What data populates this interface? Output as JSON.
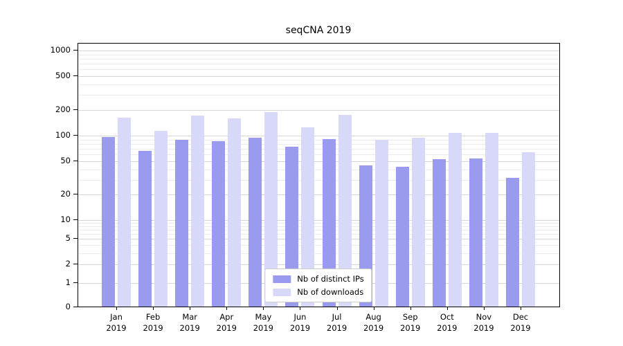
{
  "chart_data": {
    "type": "bar",
    "title": "seqCNA 2019",
    "scale": "log",
    "grid": true,
    "legend_position": "lower center",
    "categories": [
      "Jan 2019",
      "Feb 2019",
      "Mar 2019",
      "Apr 2019",
      "May 2019",
      "Jun 2019",
      "Jul 2019",
      "Aug 2019",
      "Sep 2019",
      "Oct 2019",
      "Nov 2019",
      "Dec 2019"
    ],
    "series": [
      {
        "name": "Nb of distinct IPs",
        "color": "#9a9aef",
        "values": [
          95,
          65,
          88,
          85,
          92,
          72,
          90,
          44,
          42,
          52,
          53,
          31
        ]
      },
      {
        "name": "Nb of downloads",
        "color": "#d8d8f8",
        "values": [
          160,
          112,
          168,
          158,
          185,
          122,
          172,
          88,
          93,
          105,
          106,
          62
        ]
      }
    ],
    "yticks": [
      0,
      1,
      2,
      5,
      10,
      20,
      50,
      100,
      200,
      500,
      1000
    ],
    "minor_yticks": [
      3,
      4,
      6,
      7,
      8,
      9,
      30,
      40,
      60,
      70,
      80,
      90,
      300,
      400,
      600,
      700,
      800,
      900
    ],
    "ylim": [
      0,
      1000
    ],
    "xlabel": "",
    "ylabel": ""
  }
}
